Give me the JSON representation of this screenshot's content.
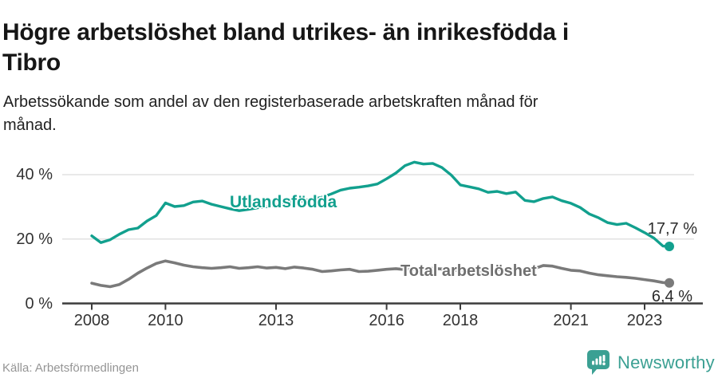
{
  "header": {
    "title": "Högre arbetslöshet bland utrikes- än inrikesfödda i Tibro",
    "title_line1": "Högre arbetslöshet bland utrikes- än inrikesfödda i",
    "title_line2": "Tibro",
    "subtitle": "Arbetssökande som andel av den registerbaserade arbetskraften månad för månad.",
    "subtitle_line1": "Arbetssökande som andel av den registerbaserade arbetskraften månad för",
    "subtitle_line2": "månad."
  },
  "footer": {
    "source": "Källa: Arbetsförmedlingen",
    "brand": "Newsworthy"
  },
  "colors": {
    "series_foreign": "#12a08e",
    "series_total": "#7a7a7a",
    "brand_teal": "#3ba093",
    "grid": "#dcdcdc",
    "axis": "#3c3c3c",
    "tick_text": "#333333"
  },
  "chart_data": {
    "type": "line",
    "title": "Högre arbetslöshet bland utrikes- än inrikesfödda i Tibro",
    "subtitle": "Arbetssökande som andel av den registerbaserade arbetskraften månad för månad.",
    "source": "Källa: Arbetsförmedlingen",
    "grid": "horizontal",
    "legend_position": "inline-labels",
    "xlim": [
      2007.85,
      2024.4
    ],
    "ylim": [
      0,
      47
    ],
    "x_ticks": [
      2008,
      2010,
      2013,
      2016,
      2018,
      2021,
      2023
    ],
    "x_tick_labels": [
      "2008",
      "2010",
      "2013",
      "2016",
      "2018",
      "2021",
      "2023"
    ],
    "y_ticks": [
      0,
      20,
      40
    ],
    "y_tick_labels": [
      "0 %",
      "20 %",
      "40 %"
    ],
    "x": [
      2008,
      2008.25,
      2008.5,
      2008.75,
      2009,
      2009.25,
      2009.5,
      2009.75,
      2010,
      2010.25,
      2010.5,
      2010.75,
      2011,
      2011.25,
      2011.5,
      2011.75,
      2012,
      2012.25,
      2012.5,
      2012.75,
      2013,
      2013.25,
      2013.5,
      2013.75,
      2014,
      2014.25,
      2014.5,
      2014.75,
      2015,
      2015.25,
      2015.5,
      2015.75,
      2016,
      2016.25,
      2016.5,
      2016.75,
      2017,
      2017.25,
      2017.5,
      2017.75,
      2018,
      2018.25,
      2018.5,
      2018.75,
      2019,
      2019.25,
      2019.5,
      2019.75,
      2020,
      2020.25,
      2020.5,
      2020.75,
      2021,
      2021.25,
      2021.5,
      2021.75,
      2022,
      2022.25,
      2022.5,
      2022.75,
      2023,
      2023.25,
      2023.5,
      2023.67
    ],
    "series": [
      {
        "name": "Utlandsfödda",
        "color": "#12a08e",
        "stroke_width": 3.4,
        "end_label": "17,7 %",
        "end_value": 17.7,
        "y": [
          21.0,
          18.9,
          19.8,
          21.5,
          22.9,
          23.4,
          25.6,
          27.3,
          31.2,
          30.1,
          30.4,
          31.5,
          31.8,
          30.8,
          30.1,
          29.4,
          28.8,
          29.2,
          29.7,
          30.1,
          30.5,
          31.0,
          31.4,
          31.9,
          32.4,
          33.0,
          34.0,
          35.2,
          35.8,
          36.1,
          36.5,
          37.1,
          38.7,
          40.5,
          42.8,
          43.9,
          43.3,
          43.5,
          42.2,
          39.9,
          36.8,
          36.2,
          35.6,
          34.5,
          34.8,
          34.1,
          34.6,
          32.0,
          31.6,
          32.6,
          33.1,
          31.9,
          31.1,
          29.8,
          27.8,
          26.6,
          25.1,
          24.5,
          24.9,
          23.5,
          22.0,
          20.3,
          17.8,
          17.7
        ]
      },
      {
        "name": "Total arbetslöshet",
        "color": "#7a7a7a",
        "stroke_width": 3.6,
        "end_label": "6,4 %",
        "end_value": 6.4,
        "y": [
          6.3,
          5.6,
          5.2,
          5.9,
          7.5,
          9.4,
          11.0,
          12.4,
          13.2,
          12.6,
          11.9,
          11.4,
          11.1,
          10.9,
          11.1,
          11.4,
          10.9,
          11.1,
          11.4,
          11.0,
          11.2,
          10.8,
          11.3,
          11.0,
          10.6,
          9.9,
          10.1,
          10.4,
          10.6,
          9.9,
          10.0,
          10.3,
          10.6,
          10.8,
          10.5,
          10.6,
          10.8,
          10.9,
          10.7,
          10.4,
          10.2,
          10.0,
          10.1,
          10.3,
          10.5,
          10.6,
          10.4,
          10.6,
          10.8,
          11.8,
          11.6,
          10.9,
          10.3,
          10.1,
          9.4,
          8.9,
          8.6,
          8.3,
          8.1,
          7.8,
          7.4,
          7.0,
          6.5,
          6.4
        ]
      }
    ]
  }
}
